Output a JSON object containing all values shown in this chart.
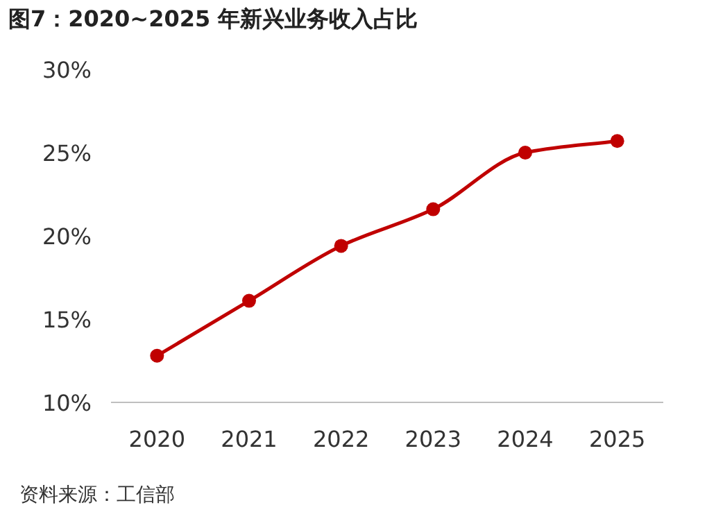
{
  "chart_data": {
    "type": "line",
    "title": "图7：2020~2025 年新兴业务收入占比",
    "categories": [
      "2020",
      "2021",
      "2022",
      "2023",
      "2024",
      "2025"
    ],
    "series": [
      {
        "color": "#c00000",
        "values": [
          12.8,
          16.1,
          19.4,
          21.6,
          25.0,
          25.7
        ]
      }
    ],
    "ylim": [
      10,
      30
    ],
    "yticks": [
      {
        "value": 10,
        "label": "10%"
      },
      {
        "value": 15,
        "label": "15%"
      },
      {
        "value": 20,
        "label": "20%"
      },
      {
        "value": 25,
        "label": "25%"
      },
      {
        "value": 30,
        "label": "30%"
      }
    ],
    "marker": "circle",
    "annotations": [
      "资料来源：工信部"
    ]
  }
}
